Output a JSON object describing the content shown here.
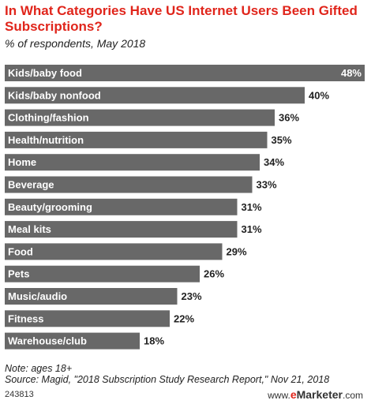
{
  "chart_data": {
    "type": "bar",
    "orientation": "horizontal",
    "title": "In What Categories Have US Internet Users Been Gifted Subscriptions?",
    "subtitle": "% of respondents, May 2018",
    "categories": [
      "Kids/baby food",
      "Kids/baby nonfood",
      "Clothing/fashion",
      "Health/nutrition",
      "Home",
      "Beverage",
      "Beauty/grooming",
      "Meal kits",
      "Food",
      "Pets",
      "Music/audio",
      "Fitness",
      "Warehouse/club"
    ],
    "values": [
      48,
      40,
      36,
      35,
      34,
      33,
      31,
      31,
      29,
      26,
      23,
      22,
      18
    ],
    "value_suffix": "%",
    "xlim": [
      0,
      48
    ],
    "bar_color": "#686868",
    "grid": false,
    "legend": "none"
  },
  "footer": {
    "note": "Note: ages 18+",
    "source": "Source: Magid, \"2018 Subscription Study Research Report,\" Nov 21, 2018",
    "chart_id": "243813",
    "brand_prefix": "www.",
    "brand_e": "e",
    "brand_name": "Marketer",
    "brand_suffix": ".com"
  },
  "colors": {
    "title": "#e0251b",
    "bar": "#686868"
  }
}
